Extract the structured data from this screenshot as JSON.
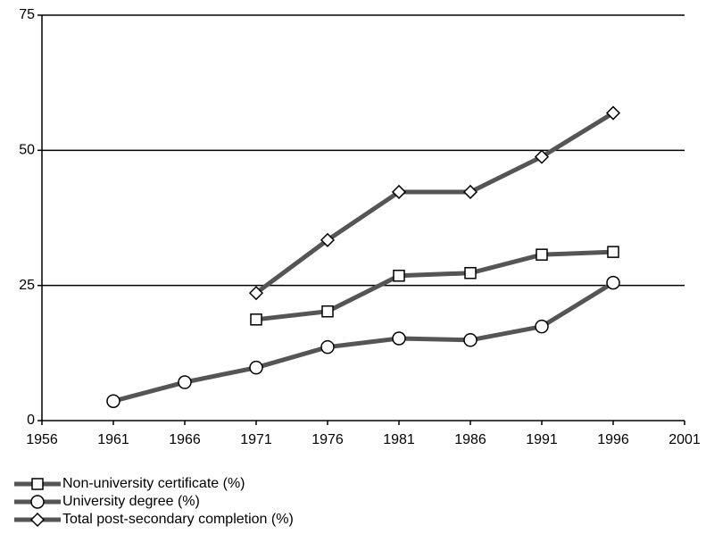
{
  "chart_data": {
    "type": "line",
    "x": [
      1961,
      1966,
      1971,
      1976,
      1981,
      1986,
      1991,
      1996
    ],
    "series": [
      {
        "name": "Non-university certificate (%)",
        "color": "#555555",
        "marker": "square",
        "values": [
          null,
          null,
          18.7,
          20.2,
          26.8,
          27.3,
          30.7,
          31.2
        ]
      },
      {
        "name": "University degree (%)",
        "color": "#555555",
        "marker": "circle",
        "values": [
          3.6,
          7.1,
          9.8,
          13.6,
          15.2,
          14.9,
          17.4,
          25.5
        ]
      },
      {
        "name": "Total post-secondary completion (%)",
        "color": "#555555",
        "marker": "diamond",
        "values": [
          null,
          null,
          23.6,
          33.4,
          42.3,
          42.3,
          48.8,
          56.9
        ]
      }
    ],
    "xlim": [
      1956,
      2001
    ],
    "xticks": [
      1956,
      1961,
      1966,
      1971,
      1976,
      1981,
      1986,
      1991,
      1996,
      2001
    ],
    "ylim": [
      0,
      75
    ],
    "yticks": [
      0,
      25,
      50,
      75
    ],
    "grid": true,
    "legend": "bottom-left"
  }
}
